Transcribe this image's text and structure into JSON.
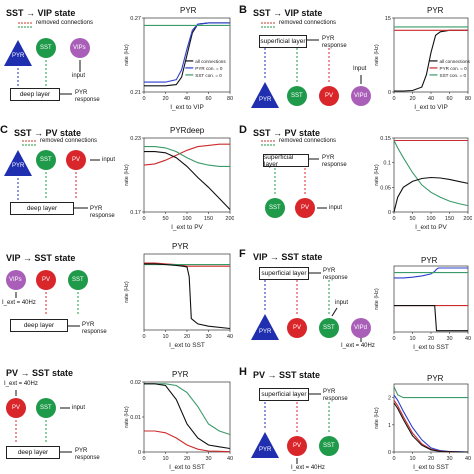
{
  "panels": {
    "A": {
      "letter": "",
      "title": "SST → VIP state",
      "legend_removed": "removed connections",
      "box": "deep layer",
      "response": "PYR response",
      "input": "input",
      "plot_title": "PYR",
      "ylabel": "rate (Hz)",
      "xlabel": "I_ext to VIP"
    },
    "B": {
      "letter": "B",
      "title": "SST → VIP state",
      "legend_removed": "removed connections",
      "box": "superficial layer",
      "response": "PYR response",
      "input": "Input",
      "plot_title": "PYR",
      "ylabel": "rate (Hz)",
      "xlabel": "I_ext to VIP"
    },
    "C": {
      "letter": "C",
      "title": "SST → PV state",
      "legend_removed": "removed connections",
      "box": "deep layer",
      "response": "PYR response",
      "input": "input",
      "plot_title": "PYRdeep",
      "ylabel": "rate (Hz)",
      "xlabel": "I_ext to PV"
    },
    "D": {
      "letter": "D",
      "title": "SST → PV state",
      "legend_removed": "removed connections",
      "box": "superficial layer",
      "response": "PYR response",
      "input": "input",
      "plot_title": "PYR",
      "ylabel": "rate (Hz)",
      "xlabel": "I_ext to PV"
    },
    "E": {
      "letter": "",
      "title": "VIP → SST state",
      "iext": "I_ext = 40Hz",
      "box": "deep layer",
      "response": "PYR response",
      "plot_title": "PYR",
      "ylabel": "rate (Hz)",
      "xlabel": "I_ext to SST"
    },
    "F": {
      "letter": "F",
      "title": "VIP → SST state",
      "box": "superficial layer",
      "response": "PYR response",
      "input": "input",
      "iext": "I_ext = 40Hz",
      "plot_title": "PYR",
      "ylabel": "rate (Hz)",
      "xlabel": "I_ext to SST"
    },
    "G": {
      "letter": "",
      "title": "PV → SST state",
      "iext": "I_ext = 40Hz",
      "input": "input",
      "box": "deep layer",
      "response": "PYR response",
      "plot_title": "PYR",
      "ylabel": "rate (Hz)",
      "xlabel": "I_ext to SST"
    },
    "H": {
      "letter": "H",
      "title": "PV → SST state",
      "box": "superficial layer",
      "response": "PYR response",
      "iext": "I_ext = 40Hz",
      "plot_title": "PYR",
      "ylabel": "rate (Hz)",
      "xlabel": "I_ext to SST"
    }
  },
  "cells": {
    "pyr": "PYR",
    "sst": "SST",
    "pv": "PV",
    "vip": "VIPs",
    "vipd": "VIPd"
  },
  "legend": {
    "all": "all connections",
    "pyr": "PYR con. = 0",
    "sst": "SST con. = 0"
  },
  "colors": {
    "pyr": "#1f2fb0",
    "sst": "#1f9a4a",
    "pv": "#d8262a",
    "vip": "#a95fb8",
    "black": "#111111",
    "blue": "#2a3fcf",
    "red": "#cc2b2b",
    "green": "#3a9a6a"
  },
  "chart_data": [
    {
      "panel": "A",
      "type": "line",
      "title": "PYR",
      "xlabel": "I_ext to VIP",
      "ylabel": "rate (Hz)",
      "xlim": [
        0,
        80
      ],
      "ylim": [
        0.21,
        0.27
      ],
      "xticks": [
        0,
        20,
        40,
        60,
        80
      ],
      "yticks": [
        0.21,
        0.27
      ],
      "x": [
        0,
        10,
        20,
        30,
        35,
        40,
        45,
        50,
        60,
        70,
        80
      ],
      "series": [
        {
          "name": "all connections",
          "color": "black",
          "values": [
            0.215,
            0.215,
            0.215,
            0.216,
            0.222,
            0.24,
            0.258,
            0.265,
            0.266,
            0.266,
            0.266
          ]
        },
        {
          "name": "PYR con. = 0",
          "color": "blue",
          "values": [
            0.218,
            0.218,
            0.218,
            0.22,
            0.228,
            0.245,
            0.26,
            0.265,
            0.266,
            0.266,
            0.266
          ]
        },
        {
          "name": "SST con. = 0",
          "color": "green",
          "values": [
            0.264,
            0.264,
            0.264,
            0.264,
            0.264,
            0.264,
            0.264,
            0.264,
            0.264,
            0.264,
            0.264
          ]
        }
      ]
    },
    {
      "panel": "B",
      "type": "line",
      "title": "PYR",
      "xlabel": "I_ext to VIP",
      "ylabel": "rate (Hz)",
      "xlim": [
        0,
        80
      ],
      "ylim": [
        0,
        15
      ],
      "xticks": [
        0,
        20,
        40,
        60,
        80
      ],
      "yticks": [
        0,
        15
      ],
      "x": [
        0,
        10,
        20,
        30,
        35,
        40,
        45,
        50,
        60,
        70,
        80
      ],
      "series": [
        {
          "name": "all connections",
          "color": "black",
          "values": [
            0.2,
            0.2,
            0.3,
            1.0,
            3.5,
            8.0,
            11.5,
            12.2,
            12.5,
            12.5,
            12.5
          ]
        },
        {
          "name": "PYR con. = 0",
          "color": "red",
          "values": [
            12.5,
            12.5,
            12.5,
            12.5,
            12.5,
            12.5,
            12.5,
            12.5,
            12.5,
            12.5,
            12.5
          ]
        },
        {
          "name": "SST con. = 0",
          "color": "green",
          "values": [
            13.2,
            13.2,
            13.2,
            13.2,
            13.2,
            13.2,
            13.2,
            13.2,
            13.2,
            13.2,
            13.2
          ]
        }
      ]
    },
    {
      "panel": "C",
      "type": "line",
      "title": "PYRdeep",
      "xlabel": "I_ext to PV",
      "ylabel": "rate (Hz)",
      "xlim": [
        0,
        200
      ],
      "ylim": [
        0.17,
        0.23
      ],
      "xticks": [
        0,
        50,
        100,
        150,
        200
      ],
      "yticks": [
        0.17,
        0.23
      ],
      "x": [
        0,
        25,
        50,
        75,
        100,
        125,
        150,
        175,
        200
      ],
      "series": [
        {
          "color": "red",
          "values": [
            0.208,
            0.209,
            0.212,
            0.216,
            0.22,
            0.223,
            0.224,
            0.225,
            0.225
          ]
        },
        {
          "color": "green",
          "values": [
            0.223,
            0.223,
            0.222,
            0.219,
            0.214,
            0.21,
            0.208,
            0.207,
            0.207
          ]
        },
        {
          "color": "black",
          "values": [
            0.219,
            0.219,
            0.218,
            0.214,
            0.207,
            0.198,
            0.19,
            0.181,
            0.172
          ]
        }
      ]
    },
    {
      "panel": "D",
      "type": "line",
      "title": "PYR",
      "xlabel": "I_ext to PV",
      "ylabel": "rate (Hz)",
      "xlim": [
        0,
        200
      ],
      "ylim": [
        0,
        0.15
      ],
      "xticks": [
        0,
        50,
        100,
        150,
        200
      ],
      "yticks": [
        0,
        0.05,
        0.1,
        0.15
      ],
      "x": [
        0,
        10,
        25,
        50,
        75,
        100,
        125,
        150,
        175,
        200
      ],
      "series": [
        {
          "color": "red",
          "values": [
            0.145,
            0.145,
            0.145,
            0.145,
            0.145,
            0.145,
            0.145,
            0.145,
            0.145,
            0.145
          ]
        },
        {
          "color": "green",
          "values": [
            0.145,
            0.13,
            0.11,
            0.08,
            0.055,
            0.04,
            0.03,
            0.022,
            0.017,
            0.013
          ]
        },
        {
          "color": "black",
          "values": [
            0.0,
            0.03,
            0.05,
            0.062,
            0.068,
            0.07,
            0.069,
            0.066,
            0.062,
            0.058
          ]
        }
      ]
    },
    {
      "panel": "E",
      "type": "line",
      "title": "PYR",
      "xlabel": "I_ext to SST",
      "ylabel": "rate (Hz)",
      "xlim": [
        0,
        40
      ],
      "ylim": [
        0,
        1
      ],
      "xticks": [
        0,
        10,
        20,
        30,
        40
      ],
      "yticks": [],
      "x": [
        0,
        5,
        10,
        15,
        18,
        20,
        21,
        22,
        25,
        30,
        40
      ],
      "series": [
        {
          "color": "red",
          "values": [
            0.88,
            0.88,
            0.87,
            0.86,
            0.85,
            0.84,
            0.84,
            0.84,
            0.84,
            0.84,
            0.84
          ]
        },
        {
          "color": "green",
          "values": [
            0.86,
            0.86,
            0.86,
            0.86,
            0.86,
            0.86,
            0.86,
            0.86,
            0.86,
            0.86,
            0.86
          ]
        },
        {
          "color": "black",
          "values": [
            0.87,
            0.87,
            0.86,
            0.85,
            0.84,
            0.83,
            0.7,
            0.15,
            0.08,
            0.05,
            0.02
          ]
        }
      ]
    },
    {
      "panel": "F",
      "type": "line",
      "title": "PYR",
      "xlabel": "I_ext to SST",
      "ylabel": "rate (Hz)",
      "xlim": [
        0,
        40
      ],
      "ylim": [
        0,
        0.1
      ],
      "xticks": [
        0,
        10,
        20,
        30,
        40
      ],
      "yticks": [],
      "x": [
        0,
        5,
        10,
        15,
        20,
        22,
        23,
        24,
        25,
        30,
        40
      ],
      "series": [
        {
          "color": "blue",
          "values": [
            0.082,
            0.082,
            0.083,
            0.085,
            0.088,
            0.092,
            0.095,
            0.097,
            0.097,
            0.097,
            0.097
          ]
        },
        {
          "color": "green",
          "values": [
            0.09,
            0.09,
            0.09,
            0.09,
            0.09,
            0.09,
            0.09,
            0.09,
            0.09,
            0.09,
            0.09
          ]
        },
        {
          "color": "red",
          "values": [
            0.04,
            0.04,
            0.04,
            0.04,
            0.04,
            0.04,
            0.04,
            0.04,
            0.04,
            0.04,
            0.04
          ]
        },
        {
          "color": "black",
          "values": [
            0.04,
            0.04,
            0.04,
            0.04,
            0.04,
            0.04,
            0.002,
            0.002,
            0.002,
            0.002,
            0.002
          ]
        }
      ]
    },
    {
      "panel": "G",
      "type": "line",
      "title": "PYR",
      "xlabel": "I_ext to SST",
      "ylabel": "rate (Hz)",
      "xlim": [
        0,
        40
      ],
      "ylim": [
        0,
        0.02
      ],
      "xticks": [
        0,
        10,
        20,
        30,
        40
      ],
      "yticks": [
        0,
        0.01,
        0.02
      ],
      "x": [
        0,
        5,
        10,
        15,
        20,
        25,
        30,
        35,
        40
      ],
      "series": [
        {
          "color": "green",
          "values": [
            0.0195,
            0.0195,
            0.0195,
            0.019,
            0.017,
            0.013,
            0.008,
            0.006,
            0.005
          ]
        },
        {
          "color": "black",
          "values": [
            0.0195,
            0.0195,
            0.019,
            0.015,
            0.008,
            0.004,
            0.002,
            0.0015,
            0.001
          ]
        },
        {
          "color": "red",
          "values": [
            0.006,
            0.006,
            0.0055,
            0.004,
            0.002,
            0.0008,
            0.0003,
            0.0002,
            0.0001
          ]
        }
      ]
    },
    {
      "panel": "H",
      "type": "line",
      "title": "PYR",
      "xlabel": "I_ext to SST",
      "ylabel": "rate (Hz)",
      "xlim": [
        0,
        40
      ],
      "ylim": [
        0,
        2.5
      ],
      "xticks": [
        0,
        10,
        20,
        30,
        40
      ],
      "yticks": [
        0,
        1,
        2
      ],
      "x": [
        0,
        2,
        5,
        10,
        15,
        20,
        25,
        30,
        35,
        40
      ],
      "series": [
        {
          "color": "green",
          "values": [
            2.4,
            2.1,
            2.0,
            2.0,
            2.0,
            2.0,
            2.0,
            2.0,
            2.0,
            2.0
          ]
        },
        {
          "color": "blue",
          "values": [
            2.1,
            1.9,
            1.5,
            0.9,
            0.45,
            0.15,
            0.05,
            0.02,
            0.01,
            0.0
          ]
        },
        {
          "color": "red",
          "values": [
            1.9,
            1.7,
            1.3,
            0.7,
            0.3,
            0.1,
            0.03,
            0.01,
            0.0,
            0.0
          ]
        },
        {
          "color": "black",
          "values": [
            1.8,
            1.6,
            1.2,
            0.6,
            0.25,
            0.08,
            0.02,
            0.01,
            0.0,
            0.0
          ]
        }
      ]
    }
  ]
}
